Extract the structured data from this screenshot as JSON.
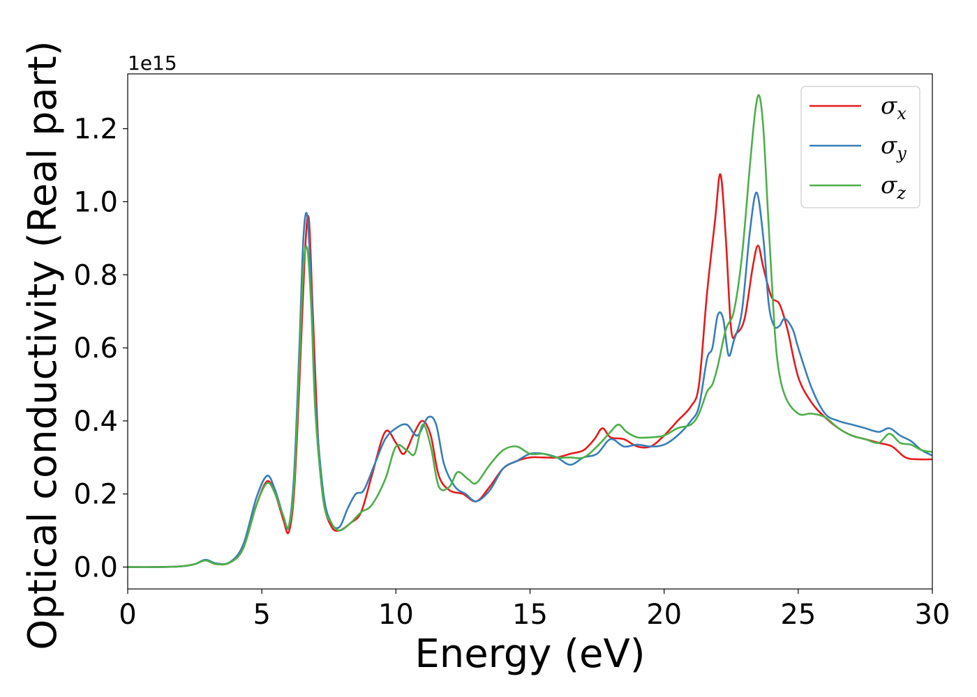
{
  "chart_data": {
    "type": "line",
    "title": "",
    "xlabel": "Energy (eV)",
    "ylabel": "Optical conductivity (Real part)",
    "y_offset_label": "1e15",
    "xlim": [
      0,
      30
    ],
    "ylim": [
      -0.06,
      1.35
    ],
    "xticks": [
      0,
      5,
      10,
      15,
      20,
      25,
      30
    ],
    "xtick_labels": [
      "0",
      "5",
      "10",
      "15",
      "20",
      "25",
      "30"
    ],
    "yticks": [
      0.0,
      0.2,
      0.4,
      0.6,
      0.8,
      1.0,
      1.2
    ],
    "ytick_labels": [
      "0.0",
      "0.2",
      "0.4",
      "0.6",
      "0.8",
      "1.0",
      "1.2"
    ],
    "grid": false,
    "legend_position": "top-right",
    "series": [
      {
        "name": "σx",
        "legend_symbol": "σ",
        "legend_subscript": "x",
        "color": "#e41a1c",
        "x": [
          0,
          1,
          2,
          2.5,
          2.9,
          3.3,
          3.8,
          4.3,
          4.8,
          5.2,
          5.5,
          5.8,
          6.0,
          6.2,
          6.4,
          6.6,
          6.75,
          6.9,
          7.1,
          7.3,
          7.6,
          7.9,
          8.3,
          8.7,
          9.1,
          9.6,
          10.0,
          10.3,
          10.7,
          11.0,
          11.3,
          11.6,
          12.0,
          12.5,
          13.0,
          13.5,
          14.0,
          14.5,
          15.0,
          15.5,
          16.0,
          16.5,
          17.0,
          17.4,
          17.7,
          18.0,
          18.5,
          19.0,
          19.5,
          20.0,
          20.5,
          21.0,
          21.3,
          21.6,
          21.9,
          22.1,
          22.3,
          22.5,
          22.7,
          23.0,
          23.3,
          23.5,
          23.7,
          24.0,
          24.3,
          24.6,
          25.0,
          25.5,
          26.0,
          26.5,
          27.0,
          27.5,
          28.0,
          28.5,
          29.0,
          29.5,
          30.0
        ],
        "y": [
          0,
          0,
          0.002,
          0.008,
          0.018,
          0.008,
          0.012,
          0.05,
          0.17,
          0.235,
          0.2,
          0.13,
          0.095,
          0.2,
          0.5,
          0.85,
          0.955,
          0.7,
          0.35,
          0.18,
          0.11,
          0.1,
          0.12,
          0.15,
          0.25,
          0.37,
          0.34,
          0.31,
          0.37,
          0.4,
          0.36,
          0.25,
          0.21,
          0.2,
          0.18,
          0.22,
          0.27,
          0.29,
          0.3,
          0.3,
          0.3,
          0.31,
          0.32,
          0.35,
          0.38,
          0.355,
          0.35,
          0.33,
          0.33,
          0.36,
          0.4,
          0.44,
          0.5,
          0.75,
          0.95,
          1.075,
          0.9,
          0.65,
          0.64,
          0.68,
          0.82,
          0.88,
          0.82,
          0.74,
          0.72,
          0.65,
          0.52,
          0.45,
          0.41,
          0.38,
          0.36,
          0.35,
          0.34,
          0.33,
          0.3,
          0.295,
          0.295
        ]
      },
      {
        "name": "σy",
        "legend_symbol": "σ",
        "legend_subscript": "y",
        "color": "#377eb8",
        "x": [
          0,
          1,
          2,
          2.5,
          2.9,
          3.3,
          3.8,
          4.3,
          4.8,
          5.2,
          5.5,
          5.8,
          6.0,
          6.2,
          6.4,
          6.55,
          6.7,
          6.85,
          7.0,
          7.3,
          7.6,
          7.9,
          8.2,
          8.5,
          8.8,
          9.2,
          9.6,
          10.0,
          10.4,
          10.8,
          11.2,
          11.5,
          11.8,
          12.2,
          12.6,
          13.0,
          13.5,
          14.0,
          14.5,
          15.0,
          15.5,
          16.0,
          16.5,
          17.0,
          17.5,
          18.0,
          18.5,
          19.0,
          19.5,
          20.0,
          20.5,
          21.0,
          21.3,
          21.6,
          21.8,
          22.0,
          22.2,
          22.4,
          22.6,
          22.9,
          23.2,
          23.45,
          23.7,
          23.9,
          24.1,
          24.3,
          24.5,
          24.8,
          25.0,
          25.5,
          26.0,
          26.5,
          27.0,
          27.5,
          28.0,
          28.4,
          28.8,
          29.2,
          29.6,
          30.0
        ],
        "y": [
          0,
          0,
          0.002,
          0.008,
          0.02,
          0.01,
          0.013,
          0.06,
          0.19,
          0.25,
          0.21,
          0.14,
          0.11,
          0.25,
          0.6,
          0.9,
          0.96,
          0.75,
          0.45,
          0.2,
          0.12,
          0.11,
          0.16,
          0.2,
          0.21,
          0.28,
          0.35,
          0.38,
          0.39,
          0.36,
          0.41,
          0.39,
          0.28,
          0.22,
          0.2,
          0.18,
          0.21,
          0.27,
          0.29,
          0.31,
          0.31,
          0.3,
          0.28,
          0.3,
          0.31,
          0.35,
          0.33,
          0.335,
          0.33,
          0.335,
          0.36,
          0.4,
          0.44,
          0.57,
          0.6,
          0.69,
          0.68,
          0.58,
          0.62,
          0.7,
          0.92,
          1.025,
          0.9,
          0.72,
          0.66,
          0.66,
          0.68,
          0.65,
          0.6,
          0.49,
          0.42,
          0.4,
          0.39,
          0.38,
          0.37,
          0.38,
          0.36,
          0.345,
          0.32,
          0.305
        ]
      },
      {
        "name": "σz",
        "legend_symbol": "σ",
        "legend_subscript": "z",
        "color": "#4daf4a",
        "x": [
          0,
          1,
          2,
          2.5,
          2.9,
          3.3,
          3.8,
          4.3,
          4.8,
          5.2,
          5.5,
          5.8,
          6.0,
          6.2,
          6.4,
          6.55,
          6.7,
          6.85,
          7.0,
          7.3,
          7.6,
          7.9,
          8.3,
          8.7,
          9.1,
          9.6,
          10.0,
          10.4,
          10.7,
          11.0,
          11.3,
          11.6,
          12.0,
          12.3,
          12.7,
          13.0,
          13.5,
          14.0,
          14.5,
          15.0,
          15.5,
          16.0,
          16.5,
          17.0,
          17.5,
          18.0,
          18.3,
          18.6,
          19.0,
          19.5,
          20.0,
          20.5,
          21.0,
          21.3,
          21.6,
          21.8,
          22.0,
          22.3,
          22.6,
          22.9,
          23.2,
          23.4,
          23.55,
          23.7,
          23.85,
          24.0,
          24.2,
          24.5,
          25.0,
          25.5,
          26.0,
          26.5,
          27.0,
          27.5,
          28.0,
          28.4,
          28.8,
          29.2,
          29.6,
          30.0
        ],
        "y": [
          0,
          0,
          0.002,
          0.008,
          0.018,
          0.008,
          0.012,
          0.05,
          0.17,
          0.23,
          0.2,
          0.14,
          0.11,
          0.22,
          0.55,
          0.82,
          0.87,
          0.7,
          0.42,
          0.18,
          0.12,
          0.1,
          0.12,
          0.15,
          0.17,
          0.24,
          0.33,
          0.32,
          0.31,
          0.39,
          0.33,
          0.22,
          0.22,
          0.26,
          0.24,
          0.23,
          0.28,
          0.32,
          0.33,
          0.31,
          0.31,
          0.3,
          0.3,
          0.3,
          0.33,
          0.37,
          0.39,
          0.37,
          0.355,
          0.355,
          0.36,
          0.38,
          0.39,
          0.42,
          0.48,
          0.5,
          0.55,
          0.65,
          0.7,
          0.85,
          1.1,
          1.25,
          1.29,
          1.2,
          1.0,
          0.8,
          0.58,
          0.47,
          0.42,
          0.42,
          0.41,
          0.38,
          0.36,
          0.35,
          0.34,
          0.365,
          0.34,
          0.335,
          0.32,
          0.315
        ]
      }
    ]
  }
}
